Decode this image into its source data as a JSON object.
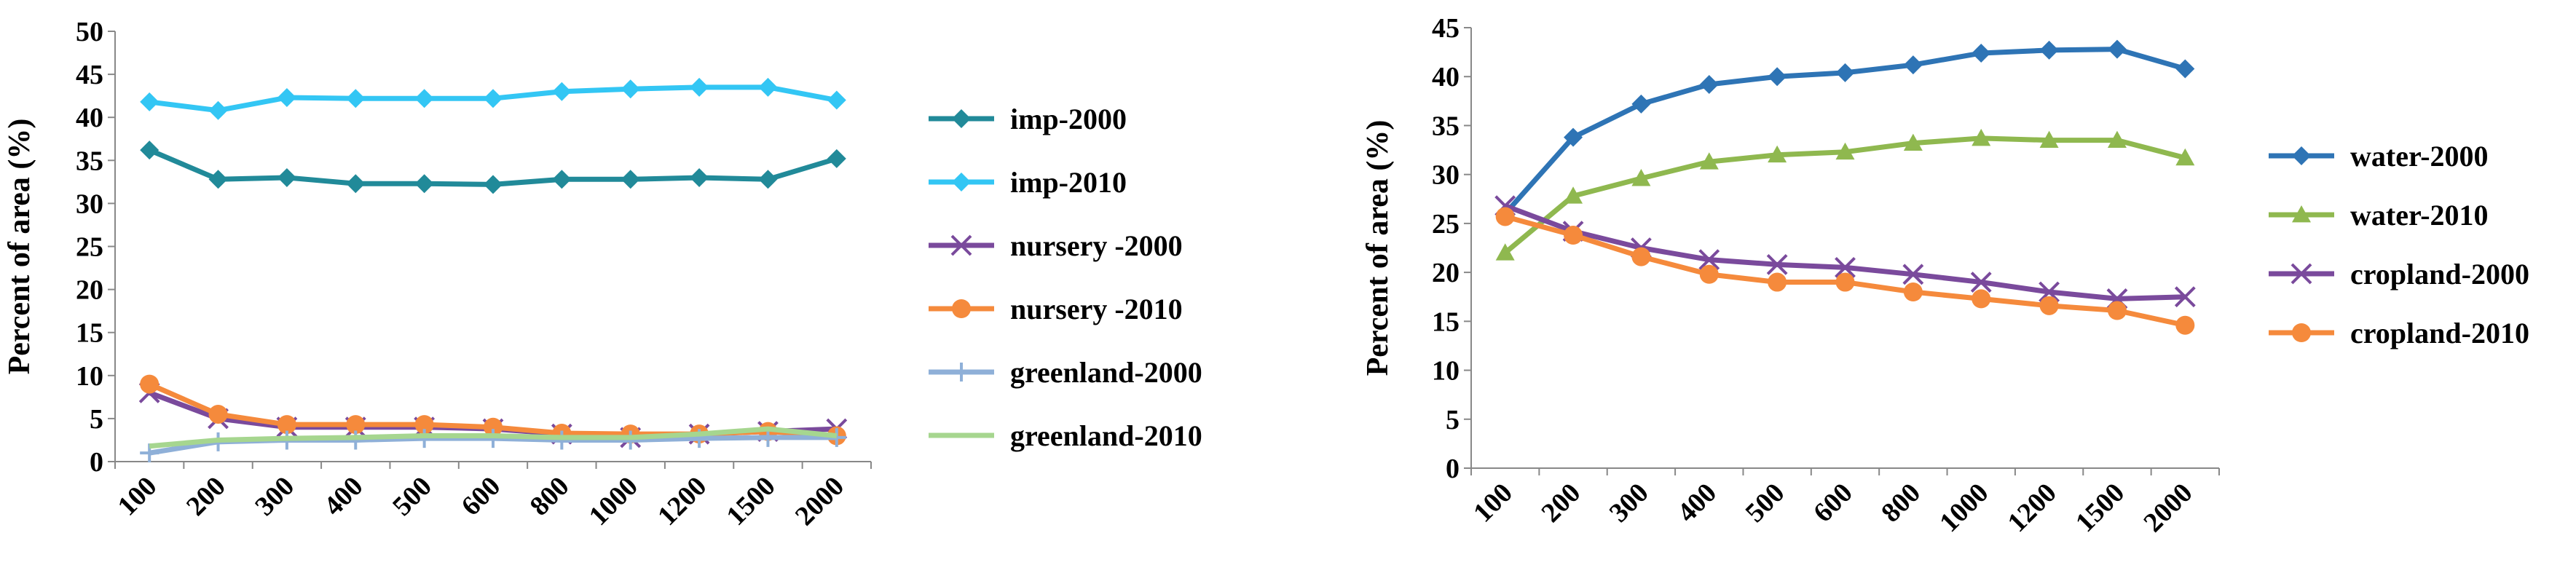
{
  "chart_data": [
    {
      "type": "line",
      "y_label": "Percent of area (%)",
      "categories": [
        "100",
        "200",
        "300",
        "400",
        "500",
        "600",
        "800",
        "1000",
        "1200",
        "1500",
        "2000"
      ],
      "ylim": [
        0,
        50
      ],
      "yticks": [
        0,
        5,
        10,
        15,
        20,
        25,
        30,
        35,
        40,
        45,
        50
      ],
      "series": [
        {
          "name": "imp-2000",
          "color": "#218a99",
          "marker": "diamond",
          "values": [
            36.2,
            32.8,
            33,
            32.3,
            32.3,
            32.2,
            32.8,
            32.8,
            33,
            32.8,
            35.2
          ]
        },
        {
          "name": "imp-2010",
          "color": "#33c6f4",
          "marker": "diamond",
          "values": [
            41.8,
            40.8,
            42.3,
            42.2,
            42.2,
            42.2,
            43,
            43.3,
            43.5,
            43.5,
            42
          ]
        },
        {
          "name": "nursery -2000",
          "color": "#7a4a9c",
          "marker": "x",
          "values": [
            8,
            5,
            4,
            4,
            4,
            3.8,
            3.2,
            2.8,
            3.2,
            3.5,
            3.8
          ]
        },
        {
          "name": "nursery -2010",
          "color": "#f58a3c",
          "marker": "circle",
          "values": [
            9,
            5.5,
            4.3,
            4.3,
            4.3,
            4,
            3.3,
            3.2,
            3.2,
            3.5,
            3
          ]
        },
        {
          "name": "greenland-2000",
          "color": "#8fb0d8",
          "marker": "plus",
          "values": [
            1,
            2.3,
            2.5,
            2.5,
            2.7,
            2.7,
            2.5,
            2.5,
            2.7,
            2.8,
            2.8
          ]
        },
        {
          "name": "greenland-2010",
          "color": "#a6d68f",
          "marker": "none",
          "values": [
            1.8,
            2.5,
            2.7,
            2.8,
            3,
            3,
            2.8,
            2.8,
            3.2,
            3.8,
            3
          ]
        }
      ]
    },
    {
      "type": "line",
      "y_label": "Percent of area (%)",
      "categories": [
        "100",
        "200",
        "300",
        "400",
        "500",
        "600",
        "800",
        "1000",
        "1200",
        "1500",
        "2000"
      ],
      "ylim": [
        0,
        45
      ],
      "yticks": [
        0,
        5,
        10,
        15,
        20,
        25,
        30,
        35,
        40,
        45
      ],
      "series": [
        {
          "name": "water-2000",
          "color": "#2e74b5",
          "marker": "diamond",
          "values": [
            26,
            33.8,
            37.2,
            39.2,
            40,
            40.4,
            41.2,
            42.4,
            42.7,
            42.8,
            40.8
          ]
        },
        {
          "name": "water-2010",
          "color": "#8fb84f",
          "marker": "triangle",
          "values": [
            22,
            27.8,
            29.6,
            31.3,
            32,
            32.3,
            33.2,
            33.7,
            33.5,
            33.5,
            31.7
          ]
        },
        {
          "name": "cropland-2000",
          "color": "#7a4a9c",
          "marker": "x",
          "values": [
            26.8,
            24.2,
            22.5,
            21.3,
            20.8,
            20.5,
            19.8,
            19,
            18,
            17.3,
            17.5
          ]
        },
        {
          "name": "cropland-2010",
          "color": "#f58a3c",
          "marker": "circle",
          "values": [
            25.7,
            23.8,
            21.6,
            19.8,
            19,
            19,
            18,
            17.3,
            16.6,
            16.1,
            14.6
          ]
        }
      ]
    }
  ]
}
